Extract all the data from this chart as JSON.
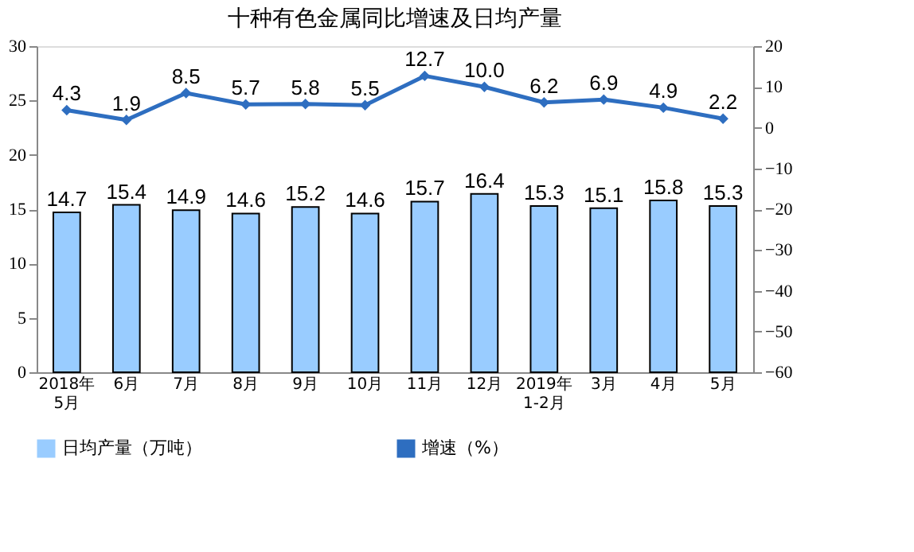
{
  "chart_data": {
    "type": "bar",
    "title": "十种有色金属同比增速及日均产量",
    "categories": [
      "2018年\n5月",
      "6月",
      "7月",
      "8月",
      "9月",
      "10月",
      "11月",
      "12月",
      "2019年\n1-2月",
      "3月",
      "4月",
      "5月"
    ],
    "series": [
      {
        "name": "日均产量（万吨）",
        "color": "#99ccff",
        "values": [
          14.7,
          15.4,
          14.9,
          14.6,
          15.2,
          14.6,
          15.7,
          16.4,
          15.3,
          15.1,
          15.8,
          15.3
        ]
      },
      {
        "name": "增速（%）",
        "type": "line",
        "axis": "y2",
        "color": "#2e6ec0",
        "values": [
          4.3,
          1.9,
          8.5,
          5.7,
          5.8,
          5.5,
          12.7,
          10.0,
          6.2,
          6.9,
          4.9,
          2.2
        ],
        "value_labels": [
          "4.3",
          "1.9",
          "8.5",
          "5.7",
          "5.8",
          "5.5",
          "12.7",
          "10.0",
          "6.2",
          "6.9",
          "4.9",
          "2.2"
        ]
      }
    ],
    "ylim": [
      0,
      30
    ],
    "yticks": [
      0,
      5,
      10,
      15,
      20,
      25,
      30
    ],
    "y2lim": [
      -60,
      20
    ],
    "y2ticks": [
      -60,
      -50,
      -40,
      -30,
      -20,
      -10,
      0,
      10,
      20
    ],
    "data_labels": true,
    "grid": false,
    "legend": "bottom",
    "marker": "diamond",
    "line_style": "solid"
  }
}
